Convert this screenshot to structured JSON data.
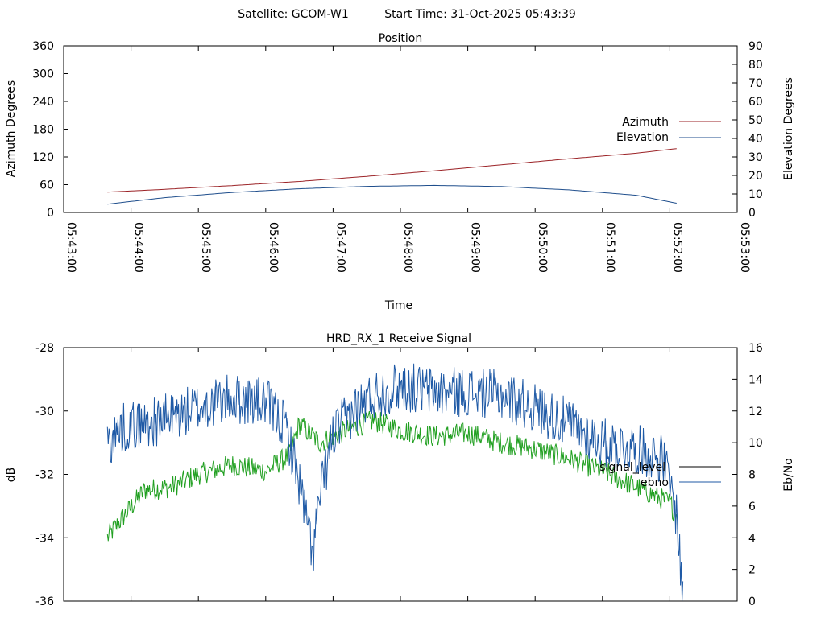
{
  "header": {
    "satellite_label": "Satellite: GCOM-W1",
    "start_time_label": "Start Time: 31-Oct-2025 05:43:39"
  },
  "chart_data": [
    {
      "type": "line",
      "title": "Position",
      "xlabel": "Time",
      "ylabel_left": "Azimuth Degrees",
      "ylabel_right": "Elevation Degrees",
      "x_ticks": [
        "05:43:00",
        "05:44:00",
        "05:45:00",
        "05:46:00",
        "05:47:00",
        "05:48:00",
        "05:49:00",
        "05:50:00",
        "05:51:00",
        "05:52:00",
        "05:53:00"
      ],
      "xlim_minutes": [
        0,
        10
      ],
      "ylim_left": [
        0,
        360
      ],
      "ylim_right": [
        0,
        90
      ],
      "y_ticks_left": [
        0,
        60,
        120,
        180,
        240,
        300,
        360
      ],
      "y_ticks_right": [
        0,
        10,
        20,
        30,
        40,
        50,
        60,
        70,
        80,
        90
      ],
      "legend_position": "right",
      "x_minutes": [
        0.65,
        1.5,
        2.5,
        3.5,
        4.5,
        5.5,
        6.5,
        7.5,
        8.5,
        9.1
      ],
      "series": [
        {
          "name": "Azimuth",
          "axis": "left",
          "color": "#9b2226",
          "values": [
            44,
            50,
            58,
            67,
            78,
            90,
            103,
            116,
            128,
            138
          ]
        },
        {
          "name": "Elevation",
          "axis": "right",
          "color": "#1f4e8c",
          "values": [
            4.5,
            8.0,
            10.8,
            12.8,
            14.1,
            14.6,
            14.0,
            12.2,
            9.3,
            5.0
          ]
        }
      ]
    },
    {
      "type": "line",
      "title": "HRD_RX_1 Receive Signal",
      "ylabel_left": "dB",
      "ylabel_right": "Eb/No",
      "ylim_left": [
        -36,
        -28
      ],
      "ylim_right": [
        0,
        16
      ],
      "y_ticks_left": [
        -36,
        -34,
        -32,
        -30,
        -28
      ],
      "y_ticks_right": [
        0,
        2,
        4,
        6,
        8,
        10,
        12,
        14,
        16
      ],
      "xlim_minutes": [
        0,
        10
      ],
      "x_ticks_minutes": [
        0,
        1,
        2,
        3,
        4,
        5,
        6,
        7,
        8,
        9,
        10
      ],
      "legend_position": "right",
      "series": [
        {
          "name": "signal_level",
          "axis": "left",
          "color": "#000000",
          "x_minutes": [
            0.65,
            0.9,
            1.2,
            1.6,
            2.0,
            2.5,
            3.0,
            3.35,
            3.5,
            3.8,
            4.2,
            4.6,
            5.0,
            5.5,
            6.0,
            6.5,
            7.0,
            7.5,
            8.0,
            8.4,
            8.7,
            9.0,
            9.1
          ],
          "values": [
            -34.0,
            -33.3,
            -32.5,
            -32.4,
            -32.0,
            -31.7,
            -31.9,
            -31.4,
            -30.4,
            -31.0,
            -30.6,
            -30.3,
            -30.6,
            -30.8,
            -30.7,
            -31.0,
            -31.2,
            -31.5,
            -31.9,
            -32.3,
            -32.6,
            -32.9,
            -33.3
          ]
        },
        {
          "name": "ebno",
          "axis": "right",
          "color": "#1f5aa6",
          "x_minutes": [
            0.65,
            0.9,
            1.2,
            1.6,
            2.0,
            2.5,
            3.0,
            3.3,
            3.5,
            3.7,
            3.8,
            4.0,
            4.3,
            4.6,
            5.0,
            5.5,
            6.0,
            6.5,
            7.0,
            7.5,
            8.0,
            8.5,
            8.9,
            9.1,
            9.2
          ],
          "values": [
            10.0,
            11.0,
            11.2,
            11.6,
            12.2,
            12.8,
            12.5,
            11.0,
            7.5,
            3.0,
            6.5,
            10.5,
            12.0,
            13.0,
            13.6,
            13.2,
            13.2,
            13.0,
            12.2,
            11.2,
            10.0,
            9.6,
            9.0,
            5.5,
            0.0
          ]
        }
      ]
    }
  ]
}
